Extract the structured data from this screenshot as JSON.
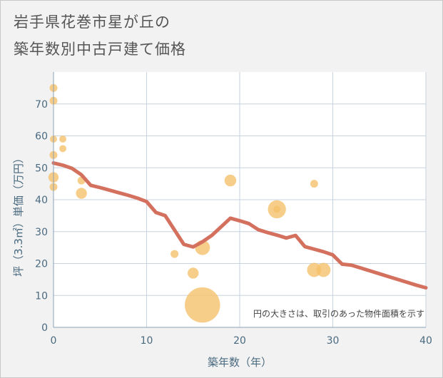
{
  "chart_data": {
    "type": "scatter",
    "title": [
      "岩手県花巻市星が丘の",
      "築年数別中古戸建て価格"
    ],
    "xlabel": "築年数（年）",
    "ylabel": "坪（3.3㎡）単価（万円）",
    "note": "円の大きさは、取引のあった物件面積を示す",
    "xlim": [
      0,
      40
    ],
    "ylim": [
      0,
      80
    ],
    "xticks": [
      0,
      10,
      20,
      30,
      40
    ],
    "yticks": [
      0,
      10,
      20,
      30,
      40,
      50,
      60,
      70
    ],
    "grid": true,
    "colors": {
      "points": "#f5c26b",
      "line": "#d4705e",
      "grid": "#c7d3df",
      "plot_bg": "#ffffff"
    },
    "points": [
      {
        "x": 0,
        "y": 75,
        "size": 1.0
      },
      {
        "x": 0,
        "y": 71,
        "size": 1.0
      },
      {
        "x": 0,
        "y": 59,
        "size": 0.9
      },
      {
        "x": 0,
        "y": 54,
        "size": 1.0
      },
      {
        "x": 0,
        "y": 47,
        "size": 1.3
      },
      {
        "x": 0,
        "y": 44,
        "size": 1.0
      },
      {
        "x": 1,
        "y": 59,
        "size": 0.9
      },
      {
        "x": 1,
        "y": 56,
        "size": 0.9
      },
      {
        "x": 3,
        "y": 46,
        "size": 1.0
      },
      {
        "x": 3,
        "y": 42,
        "size": 1.4
      },
      {
        "x": 13,
        "y": 23,
        "size": 1.0
      },
      {
        "x": 15,
        "y": 17,
        "size": 1.4
      },
      {
        "x": 16,
        "y": 25,
        "size": 1.9
      },
      {
        "x": 16,
        "y": 7,
        "size": 4.5
      },
      {
        "x": 19,
        "y": 46,
        "size": 1.5
      },
      {
        "x": 24,
        "y": 37,
        "size": 2.3
      },
      {
        "x": 24,
        "y": 37,
        "size": 0.9
      },
      {
        "x": 28,
        "y": 45,
        "size": 1.0
      },
      {
        "x": 28,
        "y": 18,
        "size": 1.8
      },
      {
        "x": 29,
        "y": 18,
        "size": 1.8
      }
    ],
    "trend_line": [
      [
        0,
        51.5
      ],
      [
        1,
        50.8
      ],
      [
        2,
        49.8
      ],
      [
        3,
        47.8
      ],
      [
        4,
        44.5
      ],
      [
        5,
        43.8
      ],
      [
        6,
        43.0
      ],
      [
        7,
        42.2
      ],
      [
        8,
        41.4
      ],
      [
        9,
        40.5
      ],
      [
        10,
        39.4
      ],
      [
        11,
        36.0
      ],
      [
        12,
        35.0
      ],
      [
        13,
        30.5
      ],
      [
        14,
        26.0
      ],
      [
        15,
        25.2
      ],
      [
        16,
        26.8
      ],
      [
        17,
        28.8
      ],
      [
        18,
        31.5
      ],
      [
        19,
        34.2
      ],
      [
        20,
        33.4
      ],
      [
        21,
        32.5
      ],
      [
        22,
        30.6
      ],
      [
        23,
        29.7
      ],
      [
        24,
        28.9
      ],
      [
        25,
        28.0
      ],
      [
        26,
        28.8
      ],
      [
        27,
        25.3
      ],
      [
        28,
        24.5
      ],
      [
        29,
        23.7
      ],
      [
        30,
        22.7
      ],
      [
        31,
        19.8
      ],
      [
        32,
        19.5
      ],
      [
        33,
        18.6
      ],
      [
        34,
        17.7
      ],
      [
        35,
        16.8
      ],
      [
        36,
        15.9
      ],
      [
        37,
        15.0
      ],
      [
        38,
        14.1
      ],
      [
        39,
        13.2
      ],
      [
        40,
        12.4
      ]
    ]
  }
}
